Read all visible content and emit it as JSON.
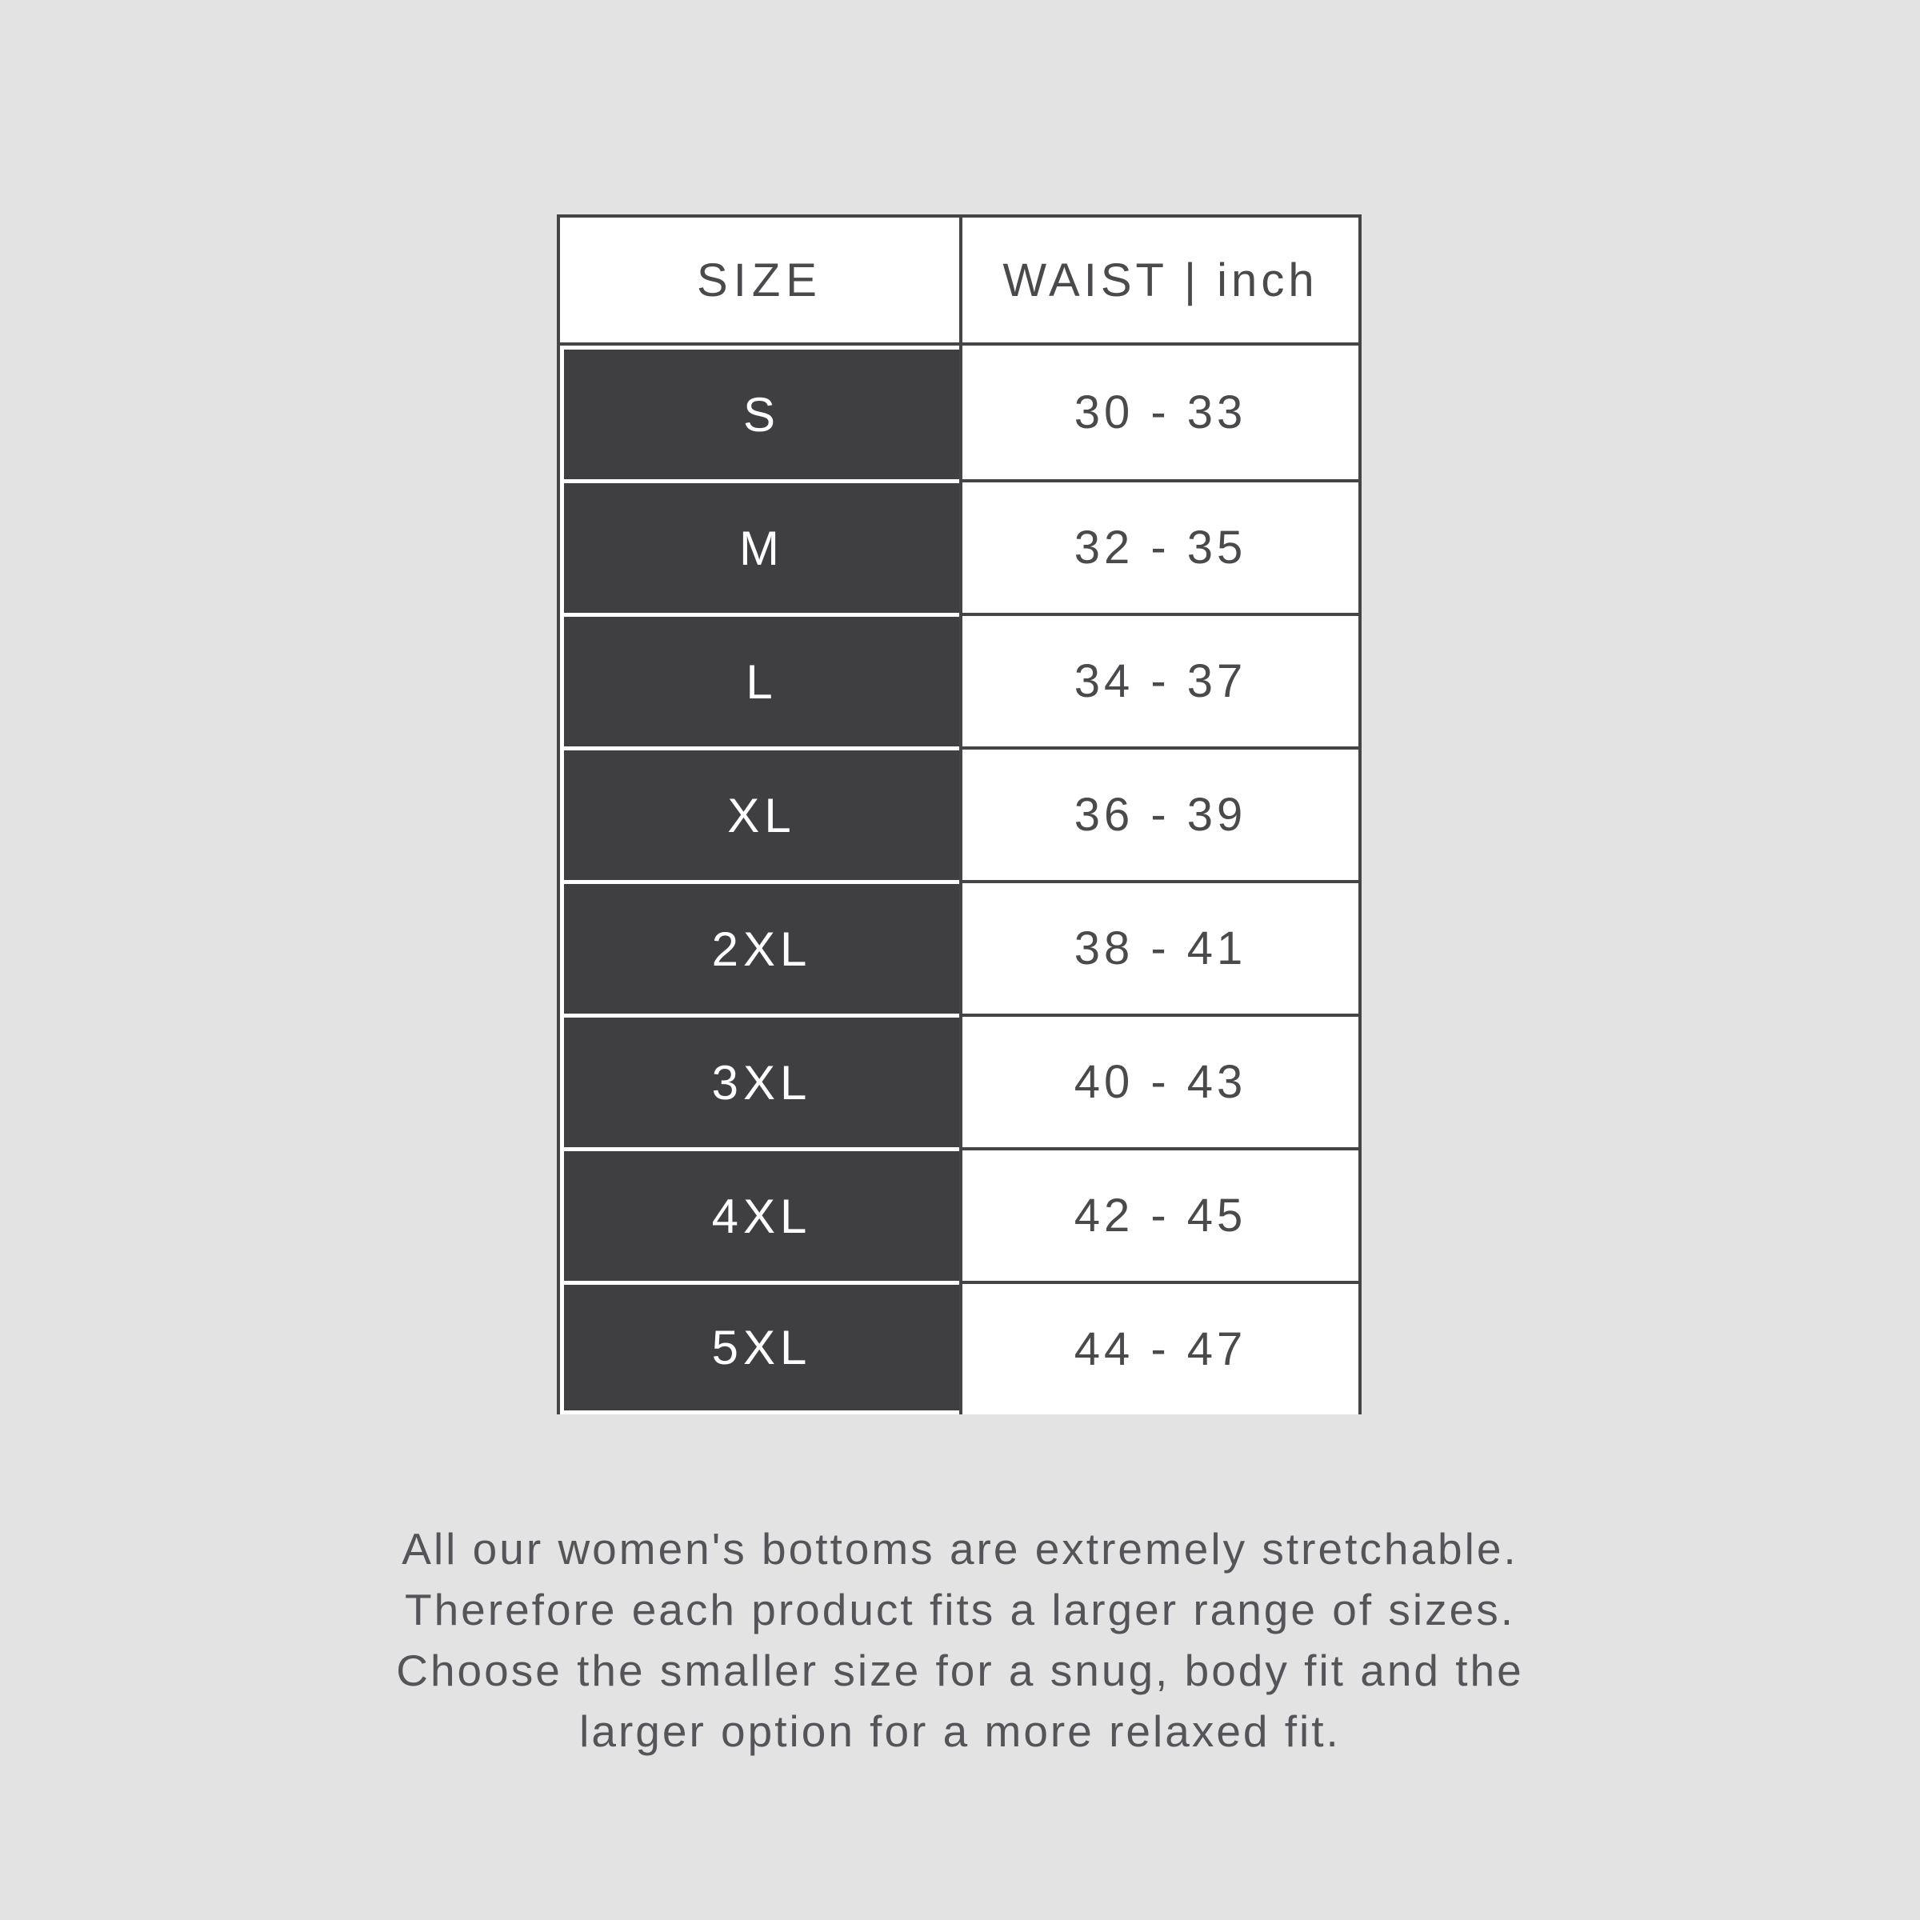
{
  "colors": {
    "bg": "#e4e3e3",
    "dark": "#3f3e40",
    "border": "#454446",
    "header_text": "#4a494c",
    "value_text": "#4a494c",
    "note_text": "#555458",
    "white": "#ffffff"
  },
  "table": {
    "headers": {
      "size": "SIZE",
      "waist": "WAIST | inch"
    },
    "rows": [
      {
        "size": "S",
        "waist": "30 - 33"
      },
      {
        "size": "M",
        "waist": "32 - 35"
      },
      {
        "size": "L",
        "waist": "34 - 37"
      },
      {
        "size": "XL",
        "waist": "36 - 39"
      },
      {
        "size": "2XL",
        "waist": "38 - 41"
      },
      {
        "size": "3XL",
        "waist": "40 - 43"
      },
      {
        "size": "4XL",
        "waist": "42 - 45"
      },
      {
        "size": "5XL",
        "waist": "44 - 47"
      }
    ]
  },
  "note": {
    "lines": [
      "All our women's bottoms are extremely stretchable.",
      "Therefore each product fits a larger range of sizes.",
      "Choose the smaller size for a snug, body fit and the",
      "larger option for a more relaxed fit."
    ]
  }
}
